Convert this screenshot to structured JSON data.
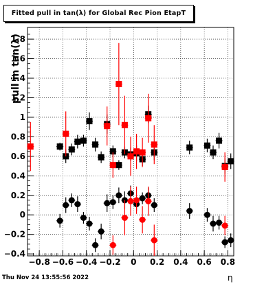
{
  "chart_data": {
    "type": "scatter",
    "title": "Fitted pull in tan(λ) for Global Rec Pion EtapT",
    "xlabel": "η",
    "ylabel": "pull in tan(λ)",
    "xlim": [
      -0.9,
      0.85
    ],
    "ylim": [
      -0.42,
      1.92
    ],
    "xticks": [
      -0.8,
      -0.6,
      -0.4,
      -0.2,
      0,
      0.2,
      0.4,
      0.6,
      0.8
    ],
    "xtick_labels": [
      "−0.8",
      "−0.6",
      "−0.4",
      "−0.2",
      "0",
      "0.2",
      "0.4",
      "0.6",
      "0.8"
    ],
    "yticks": [
      -0.4,
      -0.2,
      0,
      0.2,
      0.4,
      0.6,
      0.8,
      1,
      1.2,
      1.4,
      1.6,
      1.8
    ],
    "ytick_labels": [
      "−0.4",
      "−0.2",
      "0",
      "0.2",
      "0.4",
      "0.6",
      "0.8",
      "1",
      "1.2",
      "1.4",
      "1.6",
      "1.8"
    ],
    "grid": true,
    "series": [
      {
        "marker": "square",
        "color": "#000000",
        "points": [
          {
            "x": -0.625,
            "y": 0.7,
            "err": 0.04
          },
          {
            "x": -0.575,
            "y": 0.6,
            "err": 0.07
          },
          {
            "x": -0.525,
            "y": 0.67,
            "err": 0.06
          },
          {
            "x": -0.475,
            "y": 0.75,
            "err": 0.07
          },
          {
            "x": -0.425,
            "y": 0.76,
            "err": 0.06
          },
          {
            "x": -0.375,
            "y": 0.96,
            "err": 0.09
          },
          {
            "x": -0.325,
            "y": 0.72,
            "err": 0.07
          },
          {
            "x": -0.275,
            "y": 0.59,
            "err": 0.06
          },
          {
            "x": -0.225,
            "y": 0.93,
            "err": 0.1
          },
          {
            "x": -0.175,
            "y": 0.65,
            "err": 0.06
          },
          {
            "x": -0.125,
            "y": 0.51,
            "err": 0.05
          },
          {
            "x": -0.075,
            "y": 0.64,
            "err": 0.06
          },
          {
            "x": -0.025,
            "y": 0.62,
            "err": 0.07
          },
          {
            "x": 0.025,
            "y": 0.63,
            "err": 0.08
          },
          {
            "x": 0.075,
            "y": 0.57,
            "err": 0.07
          },
          {
            "x": 0.125,
            "y": 1.03,
            "err": 0.09
          },
          {
            "x": 0.175,
            "y": 0.64,
            "err": 0.08
          },
          {
            "x": 0.475,
            "y": 0.69,
            "err": 0.07
          },
          {
            "x": 0.625,
            "y": 0.71,
            "err": 0.07
          },
          {
            "x": 0.675,
            "y": 0.64,
            "err": 0.07
          },
          {
            "x": 0.725,
            "y": 0.76,
            "err": 0.08
          },
          {
            "x": 0.775,
            "y": 0.5,
            "err": 0.08
          },
          {
            "x": 0.825,
            "y": 0.55,
            "err": 0.08
          }
        ]
      },
      {
        "marker": "square",
        "color": "#ff0000",
        "points": [
          {
            "x": -0.875,
            "y": 0.7,
            "err": 0.25
          },
          {
            "x": -0.575,
            "y": 0.83,
            "err": 0.23
          },
          {
            "x": -0.225,
            "y": 0.91,
            "err": 0.2
          },
          {
            "x": -0.175,
            "y": 0.51,
            "err": 0.13
          },
          {
            "x": -0.125,
            "y": 1.34,
            "err": 0.42
          },
          {
            "x": -0.075,
            "y": 0.92,
            "err": 0.3
          },
          {
            "x": -0.025,
            "y": 0.6,
            "err": 0.2
          },
          {
            "x": 0.025,
            "y": 0.65,
            "err": 0.18
          },
          {
            "x": 0.075,
            "y": 0.64,
            "err": 0.15
          },
          {
            "x": 0.125,
            "y": 0.99,
            "err": 0.25
          },
          {
            "x": 0.175,
            "y": 0.72,
            "err": 0.2
          },
          {
            "x": 0.775,
            "y": 0.49,
            "err": 0.15
          }
        ]
      },
      {
        "marker": "circle",
        "color": "#000000",
        "points": [
          {
            "x": -0.625,
            "y": -0.06,
            "err": 0.07
          },
          {
            "x": -0.575,
            "y": 0.1,
            "err": 0.08
          },
          {
            "x": -0.525,
            "y": 0.15,
            "err": 0.07
          },
          {
            "x": -0.475,
            "y": 0.11,
            "err": 0.08
          },
          {
            "x": -0.425,
            "y": -0.03,
            "err": 0.06
          },
          {
            "x": -0.375,
            "y": -0.09,
            "err": 0.07
          },
          {
            "x": -0.325,
            "y": -0.31,
            "err": 0.07
          },
          {
            "x": -0.275,
            "y": -0.17,
            "err": 0.08
          },
          {
            "x": -0.225,
            "y": 0.12,
            "err": 0.09
          },
          {
            "x": -0.175,
            "y": 0.13,
            "err": 0.07
          },
          {
            "x": -0.125,
            "y": 0.2,
            "err": 0.08
          },
          {
            "x": -0.075,
            "y": 0.15,
            "err": 0.09
          },
          {
            "x": -0.025,
            "y": 0.22,
            "err": 0.08
          },
          {
            "x": 0.025,
            "y": 0.11,
            "err": 0.07
          },
          {
            "x": 0.075,
            "y": 0.17,
            "err": 0.06
          },
          {
            "x": 0.125,
            "y": 0.2,
            "err": 0.08
          },
          {
            "x": 0.175,
            "y": 0.1,
            "err": 0.07
          },
          {
            "x": 0.475,
            "y": 0.04,
            "err": 0.08
          },
          {
            "x": 0.625,
            "y": 0.0,
            "err": 0.07
          },
          {
            "x": 0.675,
            "y": -0.09,
            "err": 0.08
          },
          {
            "x": 0.725,
            "y": -0.08,
            "err": 0.07
          },
          {
            "x": 0.775,
            "y": -0.28,
            "err": 0.06
          },
          {
            "x": 0.825,
            "y": -0.26,
            "err": 0.07
          }
        ]
      },
      {
        "marker": "circle",
        "color": "#ff0000",
        "points": [
          {
            "x": -0.175,
            "y": -0.31,
            "err": 0.1
          },
          {
            "x": -0.075,
            "y": -0.03,
            "err": 0.18
          },
          {
            "x": -0.025,
            "y": 0.14,
            "err": 0.15
          },
          {
            "x": 0.025,
            "y": 0.15,
            "err": 0.14
          },
          {
            "x": 0.075,
            "y": -0.05,
            "err": 0.14
          },
          {
            "x": 0.125,
            "y": 0.14,
            "err": 0.15
          },
          {
            "x": 0.175,
            "y": -0.26,
            "err": 0.16
          },
          {
            "x": 0.775,
            "y": -0.11,
            "err": 0.1
          }
        ]
      }
    ]
  },
  "footer": {
    "date": "Thu Nov 24 13:55:56 2022"
  }
}
